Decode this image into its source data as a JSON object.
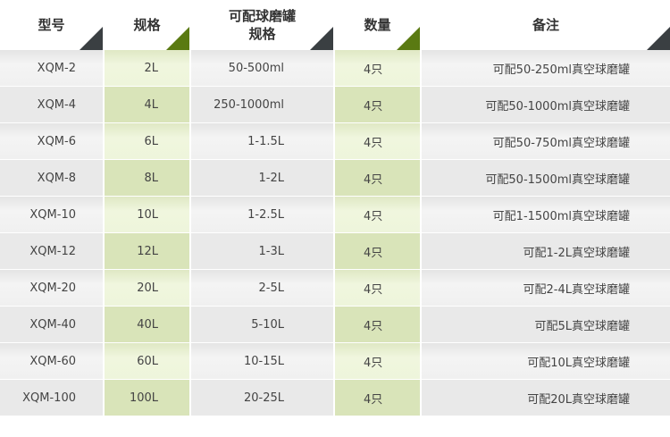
{
  "headers": [
    "型号",
    "规格",
    "可配球磨罐\n规格",
    "数量",
    "备注"
  ],
  "header_line1": "可配球磨罐",
  "header_line2": "规格",
  "rows": [
    [
      "XQM-2",
      "2L",
      "50-500ml",
      "4只",
      "可配50-250ml真空球磨罐"
    ],
    [
      "XQM-4",
      "4L",
      "250-1000ml",
      "4只",
      "可配50-1000ml真空球磨罐"
    ],
    [
      "XQM-6",
      "6L",
      "1-1.5L",
      "4只",
      "可配50-750ml真空球磨罐"
    ],
    [
      "XQM-8",
      "8L",
      "1-2L",
      "4只",
      "可配50-1500ml真空球磨罐"
    ],
    [
      "XQM-10",
      "10L",
      "1-2.5L",
      "4只",
      "可配1-1500ml真空球磨罐"
    ],
    [
      "XQM-12",
      "12L",
      "1-3L",
      "4只",
      "可配1-2L真空球磨罐"
    ],
    [
      "XQM-20",
      "20L",
      "2-5L",
      "4只",
      "可配2-4L真空球磨罐"
    ],
    [
      "XQM-40",
      "40L",
      "5-10L",
      "4只",
      "可配5L真空球磨罐"
    ],
    [
      "XQM-60",
      "60L",
      "10-15L",
      "4只",
      "可配10L真空球磨罐"
    ],
    [
      "XQM-100",
      "100L",
      "20-25L",
      "4只",
      "可配20L真空球磨罐"
    ]
  ],
  "colors": {
    "green_accent": "#5a7a12",
    "dark_accent": "#3a3f42",
    "green_cell": "#d9e4b9"
  }
}
